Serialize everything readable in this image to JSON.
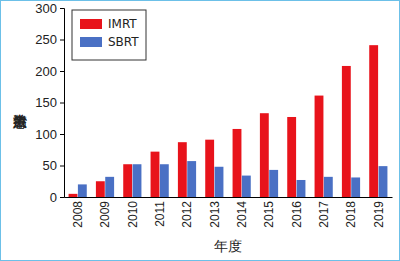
{
  "chart_data": {
    "type": "bar",
    "y_label": "治療患者数",
    "x_label": "年度",
    "categories": [
      "2008",
      "2009",
      "2010",
      "2011",
      "2012",
      "2013",
      "2014",
      "2015",
      "2016",
      "2017",
      "2018",
      "2019"
    ],
    "series": [
      {
        "name": "IMRT",
        "color": "#e8131b",
        "values": [
          5,
          25,
          52,
          72,
          87,
          91,
          108,
          133,
          127,
          161,
          208,
          241
        ]
      },
      {
        "name": "SBRT",
        "color": "#4a70c4",
        "values": [
          20,
          32,
          52,
          52,
          57,
          48,
          34,
          43,
          27,
          32,
          31,
          49
        ]
      }
    ],
    "ylim": [
      0,
      300
    ],
    "yticks": [
      0,
      50,
      100,
      150,
      200,
      250,
      300
    ],
    "legend": "upper left",
    "grid": false
  }
}
